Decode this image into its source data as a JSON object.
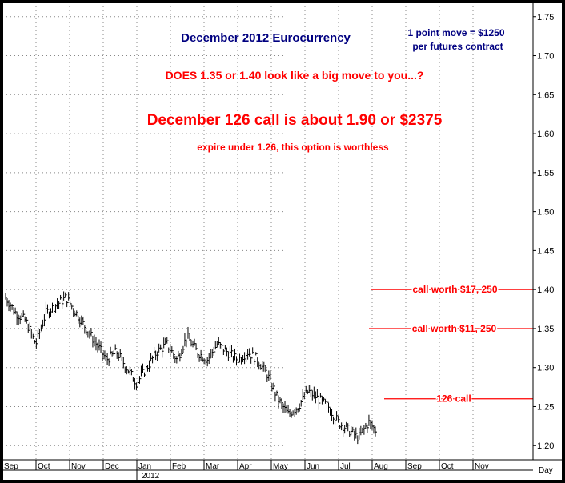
{
  "chart_data": {
    "type": "bar",
    "style": "ohlc-daily",
    "title": "December 2012 Eurocurrency",
    "contract_note": [
      "1 point move = $1250",
      "per futures contract"
    ],
    "headline_question": "DOES 1.35 or 1.40 look like a big move to you...?",
    "headline_call": "December 126 call is about 1.90 or $2375",
    "subline": "expire under 1.26, this option is worthless",
    "x_axis": {
      "label": "Day",
      "months": [
        "Sep",
        "Oct",
        "Nov",
        "Dec",
        "Jan",
        "Feb",
        "Mar",
        "Apr",
        "May",
        "Jun",
        "Jul",
        "Aug",
        "Sep",
        "Oct",
        "Nov"
      ],
      "year_label": "2012"
    },
    "y_axis": {
      "range": [
        1.19,
        1.76
      ],
      "ticks": [
        "1.20",
        "1.25",
        "1.30",
        "1.35",
        "1.40",
        "1.45",
        "1.50",
        "1.55",
        "1.60",
        "1.65",
        "1.70",
        "1.75"
      ],
      "tick_values": [
        1.2,
        1.25,
        1.3,
        1.35,
        1.4,
        1.45,
        1.5,
        1.55,
        1.6,
        1.65,
        1.7,
        1.75
      ]
    },
    "grid": true,
    "reference_lines": [
      {
        "value": 1.4,
        "label": "call worth $17, 250"
      },
      {
        "value": 1.35,
        "label": "call worth $11, 250"
      },
      {
        "value": 1.26,
        "label": "126 call"
      }
    ],
    "price_path": {
      "months": [
        0,
        0.3,
        0.6,
        0.9,
        1.2,
        1.5,
        1.8,
        2.1,
        2.4,
        2.7,
        3.0,
        3.3,
        3.6,
        3.9,
        4.2,
        4.5,
        4.8,
        5.1,
        5.4,
        5.7,
        6.0,
        6.3,
        6.6,
        6.9,
        7.2,
        7.5,
        7.8,
        8.1,
        8.4,
        8.7,
        9.0,
        9.3,
        9.6,
        9.9,
        10.2,
        10.5,
        10.8,
        11.0
      ],
      "closes": [
        1.39,
        1.37,
        1.36,
        1.33,
        1.37,
        1.38,
        1.39,
        1.37,
        1.35,
        1.33,
        1.31,
        1.32,
        1.3,
        1.28,
        1.3,
        1.32,
        1.33,
        1.31,
        1.34,
        1.32,
        1.31,
        1.33,
        1.32,
        1.31,
        1.32,
        1.31,
        1.29,
        1.26,
        1.24,
        1.25,
        1.27,
        1.26,
        1.25,
        1.23,
        1.22,
        1.21,
        1.23,
        1.22
      ]
    },
    "colors": {
      "background": "#ffffff",
      "frame": "#000000",
      "grid": "#888888",
      "title": "#000080",
      "annotation": "#ff0000",
      "bars": "#000000"
    }
  }
}
